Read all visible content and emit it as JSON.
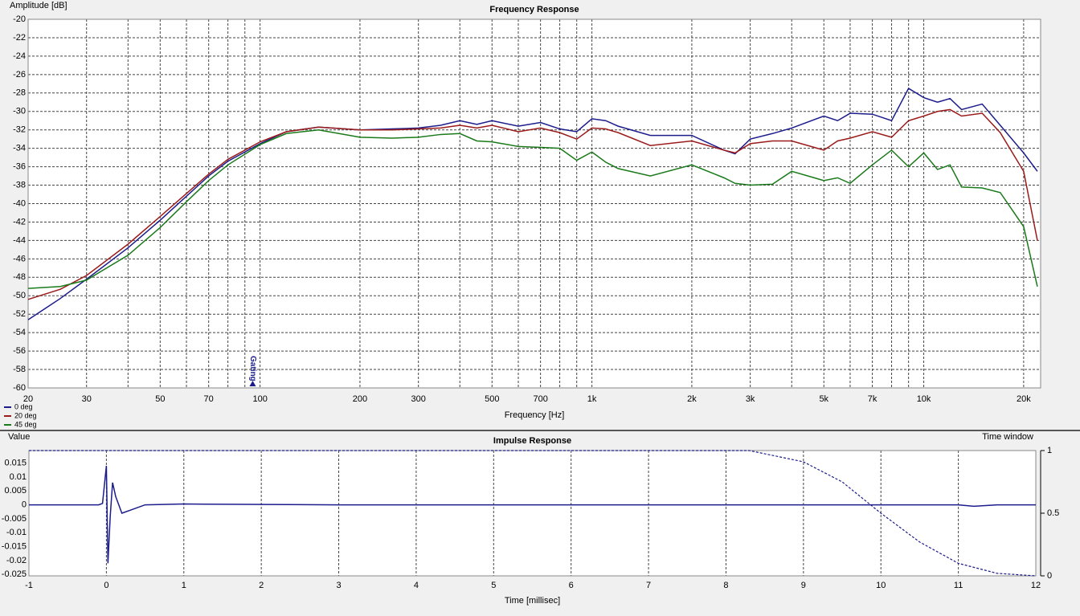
{
  "chart_data": [
    {
      "type": "line",
      "title": "Frequency Response",
      "x_label": "Frequency [Hz]",
      "y_label": "Amplitude [dB]",
      "xscale": "log",
      "xlim": [
        20,
        22500
      ],
      "ylim": [
        -60,
        -20
      ],
      "xticks": [
        20,
        30,
        50,
        70,
        100,
        200,
        300,
        500,
        700,
        {
          "value": 1000,
          "label": "1k"
        },
        {
          "value": 2000,
          "label": "2k"
        },
        {
          "value": 3000,
          "label": "3k"
        },
        {
          "value": 5000,
          "label": "5k"
        },
        {
          "value": 7000,
          "label": "7k"
        },
        {
          "value": 10000,
          "label": "10k"
        },
        {
          "value": 20000,
          "label": "20k"
        }
      ],
      "xminor": [
        40,
        60,
        80,
        90,
        400,
        600,
        800,
        900,
        4000,
        6000,
        8000,
        9000
      ],
      "yticks": [
        -20,
        -22,
        -24,
        -26,
        -28,
        -30,
        -32,
        -34,
        -36,
        -38,
        -40,
        -42,
        -44,
        -46,
        -48,
        -50,
        -52,
        -54,
        -56,
        -58,
        -60
      ],
      "grid": true,
      "legend": "lower left",
      "annotations": [
        {
          "text": "Gating",
          "x": 95
        }
      ],
      "x": [
        20,
        25,
        30,
        40,
        50,
        60,
        70,
        80,
        100,
        120,
        150,
        200,
        250,
        300,
        350,
        400,
        450,
        500,
        600,
        700,
        800,
        900,
        1000,
        1100,
        1200,
        1500,
        2000,
        2500,
        2700,
        3000,
        3500,
        4000,
        5000,
        5500,
        6000,
        7000,
        8000,
        9000,
        10000,
        11000,
        12000,
        13000,
        15000,
        17000,
        20000,
        22000
      ],
      "series": [
        {
          "name": "0 deg",
          "color": "#1c1c8c",
          "values": [
            -52.6,
            -50.3,
            -48.2,
            -44.8,
            -41.8,
            -39.2,
            -37.0,
            -35.4,
            -33.5,
            -32.2,
            -31.7,
            -32.0,
            -31.9,
            -31.8,
            -31.5,
            -31.0,
            -31.4,
            -31.0,
            -31.6,
            -31.2,
            -31.9,
            -32.2,
            -30.8,
            -31.0,
            -31.6,
            -32.6,
            -32.6,
            -34.2,
            -34.6,
            -33.0,
            -32.4,
            -31.8,
            -30.5,
            -31.0,
            -30.2,
            -30.3,
            -31.0,
            -27.5,
            -28.5,
            -29.0,
            -28.6,
            -29.8,
            -29.2,
            -31.5,
            -34.5,
            -36.5
          ]
        },
        {
          "name": "20 deg",
          "color": "#9b1b1b",
          "values": [
            -50.4,
            -49.3,
            -47.8,
            -44.4,
            -41.4,
            -38.9,
            -36.8,
            -35.2,
            -33.3,
            -32.2,
            -31.7,
            -32.0,
            -32.0,
            -31.9,
            -31.8,
            -31.5,
            -31.8,
            -31.5,
            -32.2,
            -31.8,
            -32.3,
            -33.0,
            -31.8,
            -31.9,
            -32.3,
            -33.7,
            -33.2,
            -34.2,
            -34.5,
            -33.5,
            -33.2,
            -33.2,
            -34.2,
            -33.2,
            -32.9,
            -32.2,
            -32.8,
            -31.0,
            -30.5,
            -30.0,
            -29.8,
            -30.5,
            -30.2,
            -32.3,
            -36.5,
            -44.0
          ]
        },
        {
          "name": "45 deg",
          "color": "#1a7a1a",
          "values": [
            -49.2,
            -49.0,
            -48.3,
            -45.6,
            -42.6,
            -39.8,
            -37.5,
            -35.8,
            -33.6,
            -32.4,
            -32.0,
            -32.8,
            -32.9,
            -32.8,
            -32.5,
            -32.4,
            -33.2,
            -33.3,
            -33.8,
            -33.9,
            -34.0,
            -35.3,
            -34.4,
            -35.5,
            -36.2,
            -37.0,
            -35.8,
            -37.2,
            -37.8,
            -38.0,
            -37.9,
            -36.5,
            -37.5,
            -37.2,
            -37.8,
            -35.8,
            -34.2,
            -36.0,
            -34.5,
            -36.3,
            -35.8,
            -38.2,
            -38.3,
            -38.8,
            -42.5,
            -49.0
          ]
        }
      ]
    },
    {
      "type": "line",
      "title": "Impulse Response",
      "x_label": "Time [millisec]",
      "y_label": "Value",
      "y2_label": "Time window",
      "xlim": [
        -1,
        12
      ],
      "ylim": [
        -0.0255,
        0.0195
      ],
      "y2lim": [
        0,
        1
      ],
      "xticks": [
        -1,
        0,
        1,
        2,
        3,
        4,
        5,
        6,
        7,
        8,
        9,
        10,
        11,
        12
      ],
      "yticks": [
        0.015,
        0.01,
        0.005,
        0,
        -0.005,
        -0.01,
        -0.015,
        -0.02,
        -0.025
      ],
      "y2ticks": [
        0,
        0.5,
        1
      ],
      "grid": "x",
      "series": [
        {
          "color": "#1c1c8c",
          "x": [
            -1,
            -0.1,
            -0.05,
            0,
            0.02,
            0.05,
            0.08,
            0.12,
            0.2,
            0.3,
            0.5,
            1,
            3,
            11,
            11.2,
            11.5,
            12
          ],
          "values": [
            0,
            0,
            0.0005,
            0.014,
            -0.021,
            -0.004,
            0.008,
            0.003,
            -0.003,
            -0.002,
            0,
            0.0003,
            0,
            0,
            -0.0005,
            0,
            0
          ]
        },
        {
          "color": "#1c1c8c",
          "axis": "y2",
          "dashed": true,
          "x": [
            -1,
            8.3,
            9,
            9.5,
            10,
            10.5,
            11,
            11.5,
            12
          ],
          "values": [
            1,
            1,
            0.91,
            0.75,
            0.5,
            0.27,
            0.1,
            0.02,
            0
          ]
        }
      ]
    }
  ]
}
